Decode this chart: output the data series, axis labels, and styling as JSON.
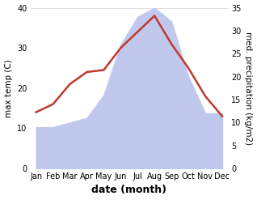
{
  "months": [
    "Jan",
    "Feb",
    "Mar",
    "Apr",
    "May",
    "Jun",
    "Jul",
    "Aug",
    "Sep",
    "Oct",
    "Nov",
    "Dec"
  ],
  "max_temp": [
    14,
    16,
    21,
    24,
    24.5,
    30,
    34,
    38,
    31,
    25,
    18,
    13
  ],
  "precipitation": [
    9,
    9,
    10,
    11,
    16,
    27,
    33,
    35,
    32,
    20,
    12,
    12
  ],
  "temp_color": "#c0392b",
  "precip_fill_color": "#c0c8ee",
  "temp_ylim": [
    0,
    40
  ],
  "precip_ylim": [
    0,
    35
  ],
  "temp_yticks": [
    0,
    10,
    20,
    30,
    40
  ],
  "precip_yticks": [
    0,
    5,
    10,
    15,
    20,
    25,
    30,
    35
  ],
  "xlabel": "date (month)",
  "ylabel_left": "max temp (C)",
  "ylabel_right": "med. precipitation (kg/m2)",
  "line_width": 1.8,
  "xlabel_fontsize": 9,
  "ylabel_fontsize": 7.5,
  "tick_fontsize": 7,
  "background_color": "#ffffff"
}
